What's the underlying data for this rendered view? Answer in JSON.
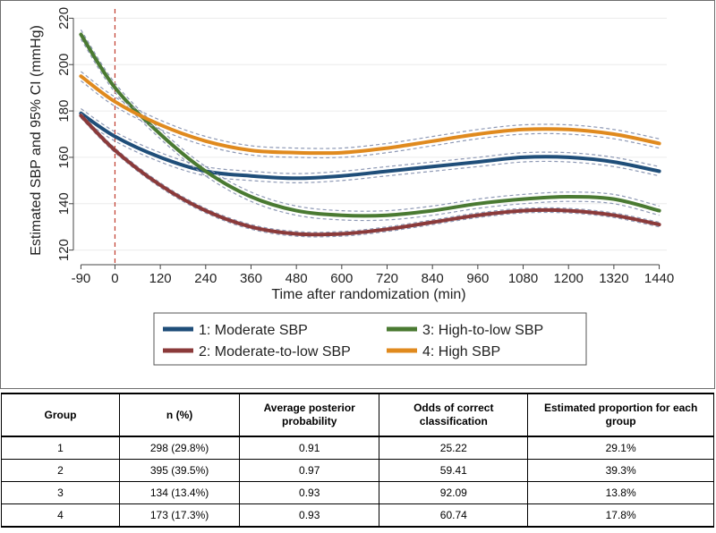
{
  "chart_data": {
    "type": "line",
    "xlabel": "Time after randomization (min)",
    "ylabel": "Estimated SBP and 95% CI (mmHg)",
    "xlim": [
      -110,
      1460
    ],
    "ylim": [
      116,
      224
    ],
    "xticks": [
      -90,
      0,
      120,
      240,
      360,
      480,
      600,
      720,
      840,
      960,
      1080,
      1200,
      1320,
      1440
    ],
    "yticks": [
      120,
      140,
      160,
      180,
      200,
      220
    ],
    "reference_line": {
      "x": 0,
      "style": "dashed",
      "color": "#c0392b"
    },
    "ci_style": "dashed",
    "ci_color": "#8e99b5",
    "legend_placement": "bottom",
    "series": [
      {
        "name": "1: Moderate SBP",
        "color": "#1f4e79",
        "ci_halfwidth": 2,
        "x": [
          -90,
          0,
          120,
          240,
          360,
          480,
          600,
          720,
          840,
          960,
          1080,
          1200,
          1320,
          1440
        ],
        "values": [
          179,
          169,
          160,
          154,
          152,
          151,
          152,
          154,
          156,
          158,
          160,
          160,
          158,
          154
        ]
      },
      {
        "name": "2: Moderate-to-low SBP",
        "color": "#8b3a3a",
        "ci_halfwidth": 1,
        "x": [
          -90,
          0,
          120,
          240,
          360,
          480,
          600,
          720,
          840,
          960,
          1080,
          1200,
          1320,
          1440
        ],
        "values": [
          178,
          163,
          148,
          137,
          130,
          127,
          127,
          129,
          132,
          135,
          137,
          137,
          135,
          131
        ]
      },
      {
        "name": "3: High-to-low SBP",
        "color": "#4a7a32",
        "ci_halfwidth": 2,
        "x": [
          -90,
          0,
          120,
          240,
          360,
          480,
          600,
          720,
          840,
          960,
          1080,
          1200,
          1320,
          1440
        ],
        "values": [
          213,
          190,
          170,
          154,
          143,
          137,
          135,
          135,
          137,
          140,
          142,
          143,
          142,
          137
        ]
      },
      {
        "name": "4: High SBP",
        "color": "#e08a1e",
        "ci_halfwidth": 2,
        "x": [
          -90,
          0,
          120,
          240,
          360,
          480,
          600,
          720,
          840,
          960,
          1080,
          1200,
          1320,
          1440
        ],
        "values": [
          195,
          184,
          174,
          167,
          163,
          162,
          162,
          164,
          167,
          170,
          172,
          172,
          170,
          166
        ]
      }
    ]
  },
  "table": {
    "headers": [
      "Group",
      "n (%)",
      "Average posterior probability",
      "Odds of correct classification",
      "Estimated proportion for each group"
    ],
    "rows": [
      [
        "1",
        "298 (29.8%)",
        "0.91",
        "25.22",
        "29.1%"
      ],
      [
        "2",
        "395 (39.5%)",
        "0.97",
        "59.41",
        "39.3%"
      ],
      [
        "3",
        "134 (13.4%)",
        "0.93",
        "92.09",
        "13.8%"
      ],
      [
        "4",
        "173 (17.3%)",
        "0.93",
        "60.74",
        "17.8%"
      ]
    ]
  }
}
